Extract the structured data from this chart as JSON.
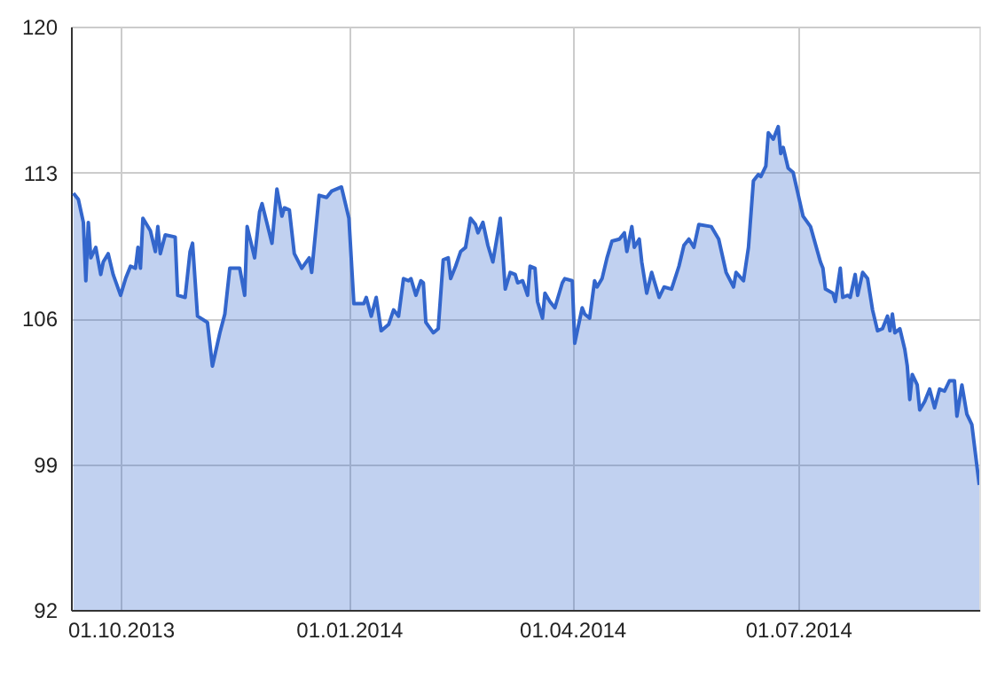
{
  "chart_data": {
    "type": "area",
    "x": [
      "2013-09-12",
      "2013-09-14",
      "2013-09-16",
      "2013-09-17",
      "2013-09-18",
      "2013-09-19",
      "2013-09-21",
      "2013-09-23",
      "2013-09-24",
      "2013-09-26",
      "2013-09-28",
      "2013-10-01",
      "2013-10-03",
      "2013-10-05",
      "2013-10-07",
      "2013-10-08",
      "2013-10-09",
      "2013-10-10",
      "2013-10-13",
      "2013-10-15",
      "2013-10-16",
      "2013-10-17",
      "2013-10-19",
      "2013-10-23",
      "2013-10-24",
      "2013-10-27",
      "2013-10-29",
      "2013-10-30",
      "2013-11-01",
      "2013-11-05",
      "2013-11-07",
      "2013-11-10",
      "2013-11-12",
      "2013-11-14",
      "2013-11-18",
      "2013-11-20",
      "2013-11-21",
      "2013-11-24",
      "2013-11-26",
      "2013-11-27",
      "2013-12-01",
      "2013-12-03",
      "2013-12-05",
      "2013-12-06",
      "2013-12-08",
      "2013-12-10",
      "2013-12-13",
      "2013-12-16",
      "2013-12-17",
      "2013-12-20",
      "2013-12-23",
      "2013-12-25",
      "2013-12-29",
      "2014-01-01",
      "2014-01-03",
      "2014-01-07",
      "2014-01-08",
      "2014-01-10",
      "2014-01-12",
      "2014-01-14",
      "2014-01-17",
      "2014-01-19",
      "2014-01-21",
      "2014-01-23",
      "2014-01-25",
      "2014-01-26",
      "2014-01-28",
      "2014-01-30",
      "2014-01-31",
      "2014-02-01",
      "2014-02-04",
      "2014-02-06",
      "2014-02-08",
      "2014-02-10",
      "2014-02-11",
      "2014-02-13",
      "2014-02-15",
      "2014-02-17",
      "2014-02-19",
      "2014-02-21",
      "2014-02-22",
      "2014-02-24",
      "2014-02-26",
      "2014-02-28",
      "2014-03-03",
      "2014-03-05",
      "2014-03-07",
      "2014-03-09",
      "2014-03-10",
      "2014-03-12",
      "2014-03-14",
      "2014-03-15",
      "2014-03-17",
      "2014-03-18",
      "2014-03-20",
      "2014-03-21",
      "2014-03-23",
      "2014-03-25",
      "2014-03-28",
      "2014-03-29",
      "2014-04-01",
      "2014-04-02",
      "2014-04-05",
      "2014-04-06",
      "2014-04-08",
      "2014-04-10",
      "2014-04-11",
      "2014-04-13",
      "2014-04-15",
      "2014-04-17",
      "2014-04-20",
      "2014-04-22",
      "2014-04-23",
      "2014-04-25",
      "2014-04-26",
      "2014-04-28",
      "2014-04-29",
      "2014-05-01",
      "2014-05-03",
      "2014-05-06",
      "2014-05-08",
      "2014-05-11",
      "2014-05-14",
      "2014-05-16",
      "2014-05-18",
      "2014-05-20",
      "2014-05-22",
      "2014-05-27",
      "2014-05-30",
      "2014-06-02",
      "2014-06-05",
      "2014-06-06",
      "2014-06-09",
      "2014-06-11",
      "2014-06-13",
      "2014-06-15",
      "2014-06-16",
      "2014-06-18",
      "2014-06-19",
      "2014-06-21",
      "2014-06-23",
      "2014-06-24",
      "2014-06-25",
      "2014-06-27",
      "2014-06-29",
      "2014-07-03",
      "2014-07-06",
      "2014-07-10",
      "2014-07-11",
      "2014-07-12",
      "2014-07-15",
      "2014-07-16",
      "2014-07-18",
      "2014-07-19",
      "2014-07-21",
      "2014-07-22",
      "2014-07-24",
      "2014-07-25",
      "2014-07-27",
      "2014-07-29",
      "2014-07-31",
      "2014-08-02",
      "2014-08-04",
      "2014-08-06",
      "2014-08-07",
      "2014-08-08",
      "2014-08-09",
      "2014-08-11",
      "2014-08-13",
      "2014-08-14",
      "2014-08-15",
      "2014-08-16",
      "2014-08-18",
      "2014-08-19",
      "2014-08-21",
      "2014-08-23",
      "2014-08-25",
      "2014-08-27",
      "2014-08-29",
      "2014-08-31",
      "2014-09-02",
      "2014-09-03",
      "2014-09-05",
      "2014-09-07",
      "2014-09-09",
      "2014-09-12"
    ],
    "series": [
      {
        "color": "#3366cc",
        "values": [
          112.0,
          111.7,
          110.6,
          107.8,
          110.6,
          108.9,
          109.4,
          108.1,
          108.7,
          109.1,
          108.1,
          107.1,
          107.9,
          108.5,
          108.4,
          109.4,
          108.4,
          110.8,
          110.2,
          109.2,
          110.4,
          109.1,
          110.0,
          109.9,
          107.1,
          107.0,
          109.2,
          109.6,
          106.1,
          105.8,
          103.7,
          105.3,
          106.2,
          108.4,
          108.4,
          107.1,
          110.4,
          108.9,
          111.1,
          111.5,
          109.6,
          112.2,
          110.9,
          111.3,
          111.2,
          109.1,
          108.4,
          108.9,
          108.2,
          111.9,
          111.8,
          112.1,
          112.3,
          110.8,
          106.7,
          106.7,
          107.0,
          106.1,
          107.0,
          105.4,
          105.7,
          106.4,
          106.1,
          107.9,
          107.8,
          107.9,
          107.1,
          107.8,
          107.7,
          105.8,
          105.3,
          105.5,
          108.8,
          108.9,
          107.9,
          108.5,
          109.2,
          109.4,
          110.8,
          110.5,
          110.1,
          110.6,
          109.5,
          108.7,
          110.8,
          107.4,
          108.2,
          108.1,
          107.7,
          107.8,
          107.1,
          108.5,
          108.4,
          106.8,
          106.0,
          107.2,
          106.8,
          106.5,
          107.7,
          107.9,
          107.8,
          104.8,
          106.5,
          106.2,
          106.0,
          107.8,
          107.5,
          107.9,
          108.9,
          109.7,
          109.8,
          110.1,
          109.2,
          110.4,
          109.4,
          109.8,
          108.7,
          107.2,
          108.2,
          107.0,
          107.5,
          107.4,
          108.5,
          109.5,
          109.8,
          109.4,
          110.5,
          110.4,
          109.8,
          108.2,
          107.5,
          108.2,
          107.8,
          109.4,
          112.6,
          112.9,
          112.8,
          113.3,
          114.9,
          114.6,
          115.2,
          113.9,
          114.2,
          113.2,
          113.0,
          110.9,
          110.4,
          108.7,
          108.4,
          107.4,
          107.2,
          106.8,
          108.4,
          107.0,
          107.1,
          107.0,
          108.1,
          107.1,
          108.2,
          107.9,
          106.4,
          105.4,
          105.5,
          106.1,
          105.4,
          106.2,
          105.3,
          105.5,
          104.5,
          103.7,
          102.1,
          103.3,
          102.8,
          101.6,
          102.0,
          102.6,
          101.7,
          102.6,
          102.5,
          103.0,
          103.0,
          101.3,
          102.8,
          101.4,
          100.9,
          98.0
        ]
      }
    ],
    "xlim": [
      "2013-09-11",
      "2014-09-12"
    ],
    "xticks": [
      {
        "value": "2013-10-01",
        "label": "01.10.2013"
      },
      {
        "value": "2014-01-01",
        "label": "01.01.2014"
      },
      {
        "value": "2014-04-01",
        "label": "01.04.2014"
      },
      {
        "value": "2014-07-01",
        "label": "01.07.2014"
      }
    ],
    "ylim": [
      92,
      120
    ],
    "yticks": [
      92,
      99,
      106,
      113,
      120
    ],
    "grid": true
  }
}
